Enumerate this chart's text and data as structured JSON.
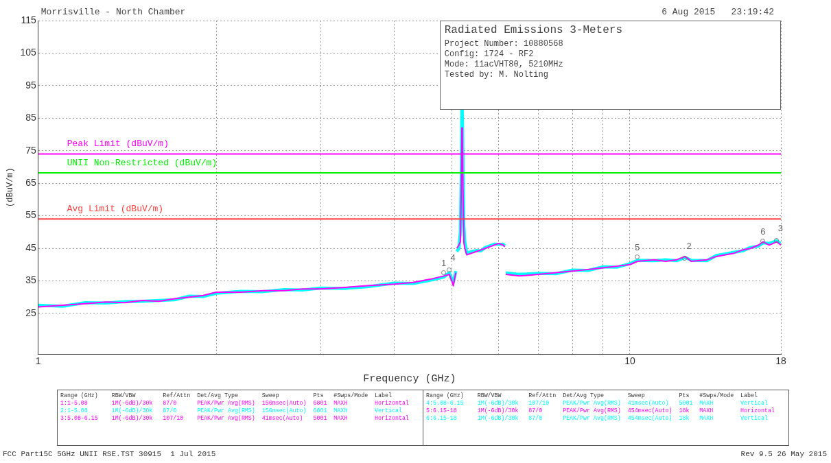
{
  "chart_data": {
    "type": "line",
    "title": "Radiated Emissions 3-Meters",
    "xlabel": "Frequency (GHz)",
    "ylabel": "(dBuV/m)",
    "log": "x",
    "xlim": [
      1,
      18
    ],
    "xticks": [
      1,
      {
        "value": 2,
        "label": null
      },
      {
        "value": 3,
        "label": null
      },
      {
        "value": 4,
        "label": null
      },
      {
        "value": 5,
        "label": null
      },
      {
        "value": 6,
        "label": null
      },
      {
        "value": 7,
        "label": null
      },
      {
        "value": 8,
        "label": null
      },
      {
        "value": 9,
        "label": null
      },
      10,
      18
    ],
    "ylim": [
      12.5,
      115
    ],
    "yticks": [
      25,
      35,
      45,
      55,
      65,
      75,
      85,
      95,
      105,
      115
    ],
    "grid": true,
    "legend": false,
    "marker": "none",
    "line_style": "solid",
    "x": [
      1.0,
      1.1,
      1.2,
      1.3,
      1.4,
      1.5,
      1.6,
      1.7,
      1.8,
      1.9,
      2.0,
      2.2,
      2.4,
      2.6,
      2.8,
      3.0,
      3.3,
      3.6,
      4.0,
      4.3,
      4.6,
      4.85,
      4.95,
      5.0,
      5.03,
      5.06,
      5.08,
      5.085,
      5.1,
      5.14,
      5.17,
      5.19,
      5.2,
      5.21,
      5.22,
      5.24,
      5.26,
      5.3,
      5.4,
      5.5,
      5.6,
      5.7,
      5.8,
      5.9,
      6.0,
      6.1,
      6.15,
      6.16,
      6.17,
      6.5,
      7,
      7.5,
      8,
      8.5,
      9,
      9.5,
      10,
      10.3,
      11,
      11.5,
      12,
      12.4,
      12.7,
      13.5,
      14,
      14.5,
      15,
      15.5,
      16,
      16.5,
      16.8,
      17.2,
      17.7,
      18
    ],
    "series": [
      {
        "color": "#ff00ff",
        "values": [
          27,
          27.5,
          28,
          28.5,
          28.3,
          29,
          28.7,
          29.5,
          30,
          30.5,
          31.5,
          31.5,
          32,
          32,
          32.5,
          32.5,
          33,
          33.5,
          34,
          34.5,
          35.5,
          36.5,
          37,
          35,
          33.5,
          36,
          37.5,
          null,
          45,
          46,
          47,
          65,
          82,
          80,
          66,
          47,
          45,
          43,
          43.5,
          44,
          44.5,
          45,
          45.5,
          46,
          46.5,
          46,
          45.5,
          null,
          37,
          36.5,
          37,
          37.5,
          38,
          38.5,
          39,
          39.5,
          40,
          41,
          41.5,
          41,
          41.5,
          42.5,
          41,
          41.5,
          42.5,
          43,
          43.5,
          44.5,
          45,
          46,
          47,
          46,
          47,
          46
        ]
      },
      {
        "color": "#00ffff",
        "values": [
          27.5,
          27.2,
          28.3,
          28.2,
          28.6,
          28.7,
          29,
          29.2,
          30.3,
          30.2,
          31.2,
          31.8,
          31.7,
          32.3,
          32.2,
          32.8,
          32.7,
          33.2,
          34.3,
          34.2,
          35.2,
          36.2,
          37.5,
          35.5,
          34.5,
          36.5,
          38,
          null,
          44,
          45,
          50,
          70,
          87.5,
          87,
          75,
          52,
          47,
          43.5,
          44,
          44.3,
          44.2,
          45.3,
          45.8,
          46.3,
          46.2,
          46.3,
          45.8,
          null,
          37.5,
          37,
          37.3,
          37.2,
          38.3,
          38.2,
          39.3,
          39.2,
          40.3,
          41.3,
          41.2,
          41.5,
          41.2,
          42.2,
          41.3,
          41.2,
          42.8,
          43.3,
          43.8,
          44.2,
          45.3,
          45.7,
          46.7,
          46.5,
          47.3,
          46.5
        ]
      }
    ],
    "ref_lines": [
      {
        "axis": "y",
        "value": 74,
        "label": "Peak Limit (dBuV/m)",
        "color": "#ff00ff"
      },
      {
        "axis": "y",
        "value": 68.2,
        "label": "UNII Non-Restricted (dBuV/m)",
        "color": "#00ee00"
      },
      {
        "axis": "y",
        "value": 54,
        "label": "Avg Limit (dBuV/m)",
        "color": "#ff4040"
      }
    ],
    "annotations": [
      "Morrisville - North Chamber",
      "6 Aug 2015   23:19:42",
      "Project Number: 10880568",
      "Config: 1724 - RF2",
      "Mode: 11acVHT80, 5210MHz",
      "Tested by: M. Nolting",
      "Range (GHz)    RBW/VBW        Ref/Attn  Det/Avg Type       Sweep          Pts   #Swps/Mode  Label",
      "1:1-5.08       1M(-6dB)/30k   87/0      PEAK/Pwr Avg(RMS)  156msec(Auto)  6801  MAXH        Horizontal",
      "2:1-5.08       1M(-6dB)/30k   87/0      PEAK/Pwr Avg(RMS)  156msec(Auto)  6801  MAXH        Vertical",
      "3:5.08-6.15    1M(-6dB)/30k   107/10    PEAK/Pwr Avg(RMS)  41msec(Auto)   5001  MAXH        Horizontal",
      "4:5.08-6.15    1M(-6dB)/30k   107/10    PEAK/Pwr Avg(RMS)  41msec(Auto)   5001  MAXH        Vertical",
      "5:6.15-18      1M(-6dB)/30k   87/0      PEAK/Pwr Avg(RMS)  454msec(Auto)  18k   MAXH        Horizontal",
      "6:6.15-18      1M(-6dB)/30k   87/0      PEAK/Pwr Avg(RMS)  454msec(Auto)  18k   MAXH        Vertical",
      "FCC Part15C 5GHz UNII RSE.TST 30915  1 Jul 2015",
      "Rev 9.5 26 May 2015",
      {
        "text": "1",
        "x": 4.85,
        "y": 36.5
      },
      {
        "text": "4",
        "x": 4.95,
        "y": 37.5
      },
      {
        "text": "5",
        "x": 10.3,
        "y": 41.5
      },
      {
        "text": "2",
        "x": 12.4,
        "y": 41
      },
      {
        "text": "6",
        "x": 16.8,
        "y": 46.2
      },
      {
        "text": "3",
        "x": 17.7,
        "y": 46.5
      }
    ]
  }
}
